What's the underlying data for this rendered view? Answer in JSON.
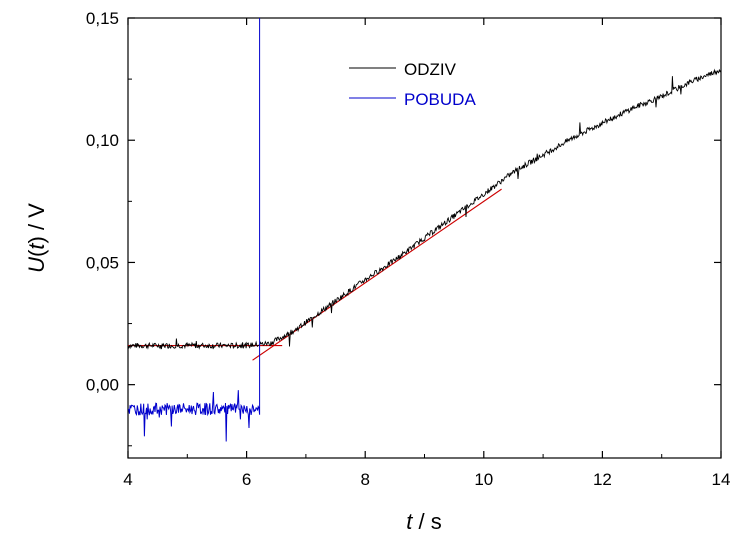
{
  "chart_data": {
    "type": "line",
    "xlabel": {
      "italic": "t",
      "rest": " / s"
    },
    "ylabel": {
      "italic_u": "U",
      "paren_open": "(",
      "italic_t": "t",
      "paren_close": ")",
      "rest": " / V"
    },
    "xlim": [
      4,
      14
    ],
    "ylim": [
      -0.03,
      0.15
    ],
    "xticks": [
      4,
      6,
      8,
      10,
      12,
      14
    ],
    "yticks": [
      0.0,
      0.05,
      0.1,
      0.15
    ],
    "xtick_labels": [
      "4",
      "6",
      "8",
      "10",
      "12",
      "14"
    ],
    "ytick_labels": [
      "0,00",
      "0,05",
      "0,10",
      "0,15"
    ],
    "grid": false,
    "legend_position": "top-center",
    "series": [
      {
        "name": "ODZIV",
        "color": "#000000",
        "x": [
          4.0,
          5.0,
          6.0,
          6.4,
          6.8,
          7.2,
          7.6,
          8.0,
          8.5,
          9.0,
          9.5,
          10.0,
          10.5,
          11.0,
          11.5,
          12.0,
          12.5,
          13.0,
          13.5,
          14.0
        ],
        "y": [
          0.016,
          0.016,
          0.016,
          0.017,
          0.022,
          0.029,
          0.036,
          0.043,
          0.051,
          0.06,
          0.069,
          0.078,
          0.087,
          0.094,
          0.101,
          0.107,
          0.113,
          0.118,
          0.124,
          0.129
        ]
      },
      {
        "name": "POBUDA",
        "color": "#0000cc",
        "x": [
          4.0,
          4.5,
          5.0,
          5.5,
          6.0,
          6.22,
          6.22,
          6.22
        ],
        "y": [
          -0.01,
          -0.01,
          -0.01,
          -0.01,
          -0.01,
          -0.01,
          0.15,
          0.15
        ]
      }
    ],
    "fit_lines": [
      {
        "color": "#cc0000",
        "x": [
          4.0,
          6.6
        ],
        "y": [
          0.016,
          0.016
        ]
      },
      {
        "color": "#cc0000",
        "x": [
          6.1,
          10.3
        ],
        "y": [
          0.01,
          0.08
        ]
      }
    ]
  }
}
